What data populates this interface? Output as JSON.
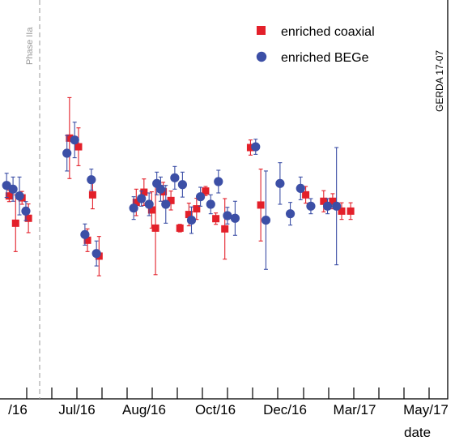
{
  "chart_data": {
    "type": "scatter",
    "title": "",
    "xlabel": "date",
    "ylabel": "",
    "x_tick_labels": [
      "/16",
      "Jul/16",
      "Aug/16",
      "Oct/16",
      "Dec/16",
      "Mar/17",
      "May/17"
    ],
    "annotations": {
      "phase": "Phase IIa",
      "experiment": "GERDA 17-07"
    },
    "grid": false,
    "legend_position": "top-right",
    "series": [
      {
        "name": "enriched coaxial",
        "marker": "square",
        "color": "#e3202a",
        "points": [
          {
            "x": "2016-06-05",
            "y": 5.32,
            "err": 0.15
          },
          {
            "x": "2016-06-10",
            "y": 4.6,
            "err": 0.75
          },
          {
            "x": "2016-06-15",
            "y": 5.27,
            "err": 0.17
          },
          {
            "x": "2016-06-20",
            "y": 4.73,
            "err": 0.38
          },
          {
            "x": "2016-07-22",
            "y": 6.85,
            "err": 1.07
          },
          {
            "x": "2016-07-29",
            "y": 6.62,
            "err": 0.5
          },
          {
            "x": "2016-08-05",
            "y": 4.15,
            "err": 0.3
          },
          {
            "x": "2016-08-09",
            "y": 5.35,
            "err": 0.37
          },
          {
            "x": "2016-08-14",
            "y": 3.73,
            "err": 0.52
          },
          {
            "x": "2016-09-12",
            "y": 5.15,
            "err": 0.35
          },
          {
            "x": "2016-09-18",
            "y": 5.42,
            "err": 0.35
          },
          {
            "x": "2016-09-24",
            "y": 4.95,
            "err": 0.48
          },
          {
            "x": "2016-09-27",
            "y": 4.47,
            "err": 1.23
          },
          {
            "x": "2016-10-03",
            "y": 5.43,
            "err": 0.25
          },
          {
            "x": "2016-10-09",
            "y": 5.2,
            "err": 0.25
          },
          {
            "x": "2016-10-16",
            "y": 4.47,
            "err": 0.1
          },
          {
            "x": "2016-10-23",
            "y": 4.83,
            "err": 0.3
          },
          {
            "x": "2016-10-29",
            "y": 4.98,
            "err": 0.28
          },
          {
            "x": "2016-11-05",
            "y": 5.45,
            "err": 0.12
          },
          {
            "x": "2016-11-13",
            "y": 4.72,
            "err": 0.15
          },
          {
            "x": "2016-11-20",
            "y": 4.45,
            "err": 0.8
          },
          {
            "x": "2016-12-10",
            "y": 6.6,
            "err": 0.2
          },
          {
            "x": "2016-12-18",
            "y": 5.08,
            "err": 0.95
          },
          {
            "x": "2017-01-22",
            "y": 5.35,
            "err": 0.22
          },
          {
            "x": "2017-02-05",
            "y": 5.18,
            "err": 0.28
          },
          {
            "x": "2017-02-12",
            "y": 5.18,
            "err": 0.2
          },
          {
            "x": "2017-02-19",
            "y": 4.92,
            "err": 0.22
          },
          {
            "x": "2017-02-26",
            "y": 4.92,
            "err": 0.22
          }
        ]
      },
      {
        "name": "enriched BEGe",
        "marker": "circle",
        "color": "#3c4fa6",
        "points": [
          {
            "x": "2016-06-03",
            "y": 5.6,
            "err": 0.32
          },
          {
            "x": "2016-06-08",
            "y": 5.5,
            "err": 0.32
          },
          {
            "x": "2016-06-13",
            "y": 5.32,
            "err": 0.5
          },
          {
            "x": "2016-06-18",
            "y": 4.92,
            "err": 0.25
          },
          {
            "x": "2016-07-20",
            "y": 6.45,
            "err": 0.47
          },
          {
            "x": "2016-07-26",
            "y": 6.8,
            "err": 0.47
          },
          {
            "x": "2016-08-03",
            "y": 4.3,
            "err": 0.28
          },
          {
            "x": "2016-08-08",
            "y": 5.75,
            "err": 0.28
          },
          {
            "x": "2016-08-12",
            "y": 3.8,
            "err": 0.33
          },
          {
            "x": "2016-09-10",
            "y": 5.0,
            "err": 0.3
          },
          {
            "x": "2016-09-16",
            "y": 5.25,
            "err": 0.2
          },
          {
            "x": "2016-09-22",
            "y": 5.1,
            "err": 0.3
          },
          {
            "x": "2016-09-28",
            "y": 5.65,
            "err": 0.3
          },
          {
            "x": "2016-10-01",
            "y": 5.5,
            "err": 0.32
          },
          {
            "x": "2016-10-05",
            "y": 5.1,
            "err": 0.5
          },
          {
            "x": "2016-10-12",
            "y": 5.8,
            "err": 0.3
          },
          {
            "x": "2016-10-18",
            "y": 5.62,
            "err": 0.33
          },
          {
            "x": "2016-10-25",
            "y": 4.68,
            "err": 0.35
          },
          {
            "x": "2016-11-01",
            "y": 5.3,
            "err": 0.25
          },
          {
            "x": "2016-11-09",
            "y": 5.1,
            "err": 0.25
          },
          {
            "x": "2016-11-15",
            "y": 5.7,
            "err": 0.3
          },
          {
            "x": "2016-11-22",
            "y": 4.8,
            "err": 0.22
          },
          {
            "x": "2016-11-28",
            "y": 4.73,
            "err": 0.45
          },
          {
            "x": "2016-12-14",
            "y": 6.62,
            "err": 0.2
          },
          {
            "x": "2016-12-22",
            "y": 4.68,
            "err": 1.3
          },
          {
            "x": "2017-01-02",
            "y": 5.65,
            "err": 0.55
          },
          {
            "x": "2017-01-10",
            "y": 4.85,
            "err": 0.3
          },
          {
            "x": "2017-01-18",
            "y": 5.52,
            "err": 0.3
          },
          {
            "x": "2017-01-26",
            "y": 5.05,
            "err": 0.2
          },
          {
            "x": "2017-02-08",
            "y": 5.05,
            "err": 0.2
          },
          {
            "x": "2017-02-15",
            "y": 5.05,
            "err": 1.55
          }
        ]
      }
    ]
  }
}
